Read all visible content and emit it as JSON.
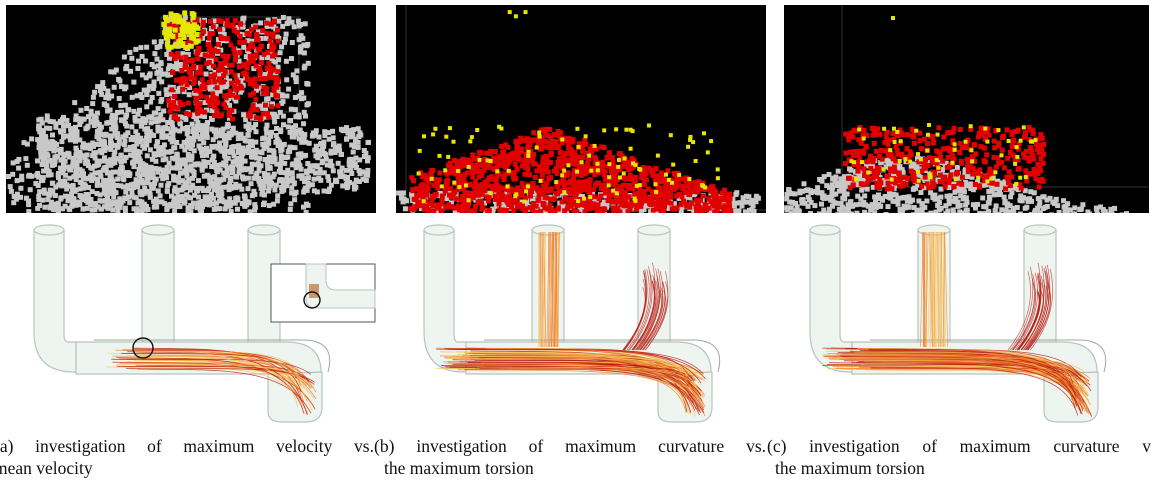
{
  "figure": {
    "panels": [
      {
        "id": "a",
        "caption_line1": "(a)  investigation  of  maximum  velocity  vs.",
        "caption_line2": "mean velocity"
      },
      {
        "id": "b",
        "caption_line1": "(b)  investigation  of  maximum  curvature  vs.",
        "caption_line2": "the maximum torsion"
      },
      {
        "id": "c",
        "caption_line1": "(c)  investigation  of  maximum  curvature  v",
        "caption_line2": "the maximum torsion"
      }
    ],
    "colors": {
      "scatter_background": "#000000",
      "context_points": "#c8c8c8",
      "selected_points": "#e00000",
      "highlight_points": "#e6e600",
      "pipe_fill": "#eef5f1",
      "pipe_outline": "#b8c4bd",
      "streamline_light": "#f6c25a",
      "streamline_mid": "#f07a2a",
      "streamline_dark": "#b81c10"
    }
  }
}
